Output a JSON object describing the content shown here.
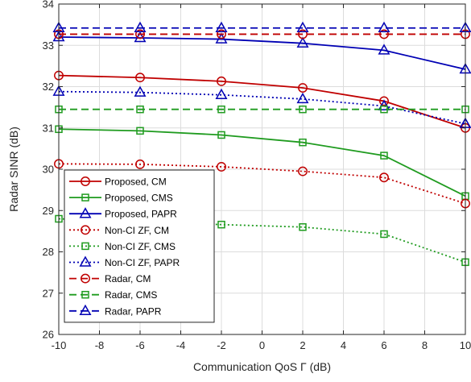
{
  "chart_data": {
    "type": "line",
    "xlabel": "Communication QoS Γ (dB)",
    "ylabel": "Radar SINR (dB)",
    "xlim": [
      -10,
      10
    ],
    "ylim": [
      26,
      34
    ],
    "x_ticks": [
      "-10",
      "-8",
      "-6",
      "-4",
      "-2",
      "0",
      "2",
      "4",
      "6",
      "8",
      "10"
    ],
    "y_ticks": [
      "26",
      "27",
      "28",
      "29",
      "30",
      "31",
      "32",
      "33",
      "34"
    ],
    "grid": true,
    "legend_position": "lower-left",
    "x": [
      -10,
      -6,
      -2,
      2,
      6,
      10
    ],
    "series": [
      {
        "name": "Proposed, CM",
        "values": [
          32.27,
          32.22,
          32.13,
          31.97,
          31.65,
          31.0
        ],
        "color": "#c00000",
        "style": "solid",
        "marker": "circle"
      },
      {
        "name": "Proposed, CMS",
        "values": [
          30.97,
          30.93,
          30.83,
          30.65,
          30.33,
          29.35
        ],
        "color": "#1f9b1f",
        "style": "solid",
        "marker": "square"
      },
      {
        "name": "Proposed, PAPR",
        "values": [
          33.2,
          33.18,
          33.15,
          33.05,
          32.88,
          32.42
        ],
        "color": "#0000b4",
        "style": "solid",
        "marker": "triangle"
      },
      {
        "name": "Non-CI ZF, CM",
        "values": [
          30.13,
          30.12,
          30.06,
          29.95,
          29.8,
          29.17
        ],
        "color": "#c00000",
        "style": "dotted",
        "marker": "circle"
      },
      {
        "name": "Non-CI ZF, CMS",
        "values": [
          28.8,
          28.72,
          28.66,
          28.6,
          28.43,
          27.75
        ],
        "color": "#1f9b1f",
        "style": "dotted",
        "marker": "square"
      },
      {
        "name": "Non-CI ZF, PAPR",
        "values": [
          31.88,
          31.86,
          31.8,
          31.7,
          31.53,
          31.1
        ],
        "color": "#0000b4",
        "style": "dotted",
        "marker": "triangle"
      },
      {
        "name": "Radar, CM",
        "values": [
          33.27,
          33.27,
          33.27,
          33.27,
          33.27,
          33.27
        ],
        "color": "#c00000",
        "style": "dashed",
        "marker": "circle"
      },
      {
        "name": "Radar, CMS",
        "values": [
          31.45,
          31.45,
          31.45,
          31.45,
          31.45,
          31.45
        ],
        "color": "#1f9b1f",
        "style": "dashed",
        "marker": "square"
      },
      {
        "name": "Radar, PAPR",
        "values": [
          33.42,
          33.42,
          33.42,
          33.42,
          33.42,
          33.42
        ],
        "color": "#0000b4",
        "style": "dashed",
        "marker": "triangle"
      }
    ]
  }
}
